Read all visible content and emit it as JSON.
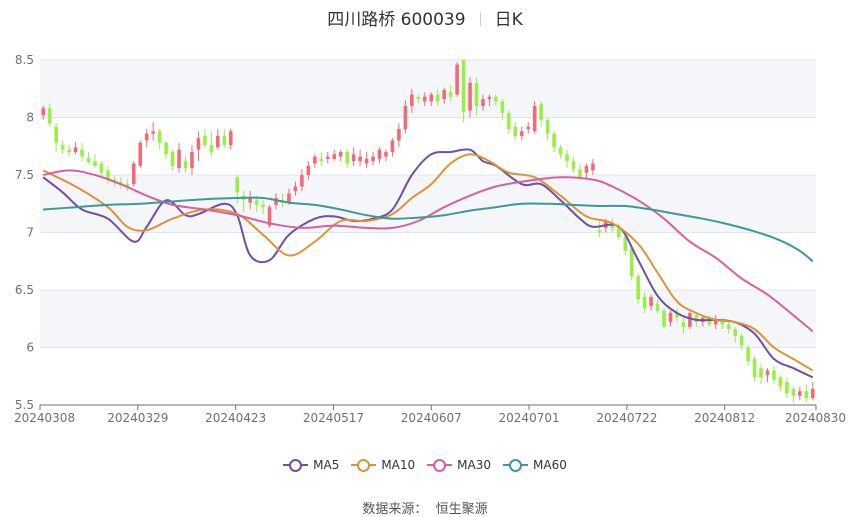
{
  "title": {
    "name": "四川路桥 600039",
    "period": "日K"
  },
  "source": {
    "label": "数据来源：",
    "value": "恒生聚源"
  },
  "colors": {
    "up": "#f06b77",
    "down": "#99ef45",
    "grid_band": "#f5f6fa",
    "ma5": "#6f4fa7",
    "ma10": "#de9339",
    "ma30": "#d9609e",
    "ma60": "#3c9a99"
  },
  "chart_data": {
    "type": "candlestick",
    "ylim": [
      5.5,
      8.5
    ],
    "yticks": [
      "8.5",
      "8",
      "7.5",
      "7",
      "6.5",
      "6",
      "5.5"
    ],
    "ytick_values": [
      8.5,
      8.0,
      7.5,
      7.0,
      6.5,
      6.0,
      5.5
    ],
    "xtick_labels": [
      "20240308",
      "20240329",
      "20240423",
      "20240517",
      "20240607",
      "20240701",
      "20240722",
      "20240812",
      "20240830"
    ],
    "xtick_index": [
      0,
      15,
      30,
      45,
      60,
      75,
      90,
      105,
      119
    ],
    "total_days": 120,
    "candles": [
      [
        8.02,
        8.08,
        8.1,
        7.98
      ],
      [
        8.08,
        7.95,
        8.12,
        7.92
      ],
      [
        7.92,
        7.78,
        7.95,
        7.7
      ],
      [
        7.76,
        7.72,
        7.8,
        7.68
      ],
      [
        7.72,
        7.7,
        7.76,
        7.66
      ],
      [
        7.7,
        7.74,
        7.79,
        7.68
      ],
      [
        7.72,
        7.66,
        7.78,
        7.62
      ],
      [
        7.65,
        7.61,
        7.7,
        7.6
      ],
      [
        7.62,
        7.58,
        7.68,
        7.56
      ],
      [
        7.6,
        7.52,
        7.62,
        7.48
      ],
      [
        7.54,
        7.46,
        7.58,
        7.42
      ],
      [
        7.46,
        7.44,
        7.5,
        7.4
      ],
      [
        7.44,
        7.42,
        7.48,
        7.38
      ],
      [
        7.42,
        7.4,
        7.46,
        7.36
      ],
      [
        7.42,
        7.6,
        7.62,
        7.4
      ],
      [
        7.58,
        7.78,
        7.8,
        7.56
      ],
      [
        7.8,
        7.86,
        7.9,
        7.74
      ],
      [
        7.86,
        7.88,
        7.96,
        7.8
      ],
      [
        7.88,
        7.78,
        7.9,
        7.72
      ],
      [
        7.78,
        7.68,
        7.8,
        7.64
      ],
      [
        7.7,
        7.58,
        7.72,
        7.54
      ],
      [
        7.56,
        7.72,
        7.78,
        7.52
      ],
      [
        7.62,
        7.56,
        7.66,
        7.52
      ],
      [
        7.56,
        7.7,
        7.76,
        7.5
      ],
      [
        7.72,
        7.82,
        7.88,
        7.62
      ],
      [
        7.84,
        7.76,
        7.9,
        7.74
      ],
      [
        7.76,
        7.7,
        7.88,
        7.66
      ],
      [
        7.74,
        7.84,
        7.9,
        7.72
      ],
      [
        7.84,
        7.76,
        7.9,
        7.74
      ],
      [
        7.76,
        7.88,
        7.9,
        7.72
      ],
      [
        7.48,
        7.35,
        7.5,
        7.25
      ],
      [
        7.32,
        7.28,
        7.36,
        7.18
      ],
      [
        7.26,
        7.3,
        7.36,
        7.2
      ],
      [
        7.28,
        7.24,
        7.32,
        7.18
      ],
      [
        7.24,
        7.22,
        7.28,
        7.16
      ],
      [
        7.06,
        7.22,
        7.24,
        7.04
      ],
      [
        7.24,
        7.3,
        7.34,
        7.2
      ],
      [
        7.28,
        7.26,
        7.34,
        7.22
      ],
      [
        7.26,
        7.34,
        7.38,
        7.24
      ],
      [
        7.36,
        7.4,
        7.44,
        7.32
      ],
      [
        7.4,
        7.5,
        7.55,
        7.36
      ],
      [
        7.5,
        7.58,
        7.62,
        7.46
      ],
      [
        7.6,
        7.66,
        7.68,
        7.56
      ],
      [
        7.64,
        7.62,
        7.7,
        7.58
      ],
      [
        7.64,
        7.66,
        7.7,
        7.6
      ],
      [
        7.64,
        7.68,
        7.72,
        7.62
      ],
      [
        7.66,
        7.7,
        7.72,
        7.62
      ],
      [
        7.7,
        7.6,
        7.72,
        7.56
      ],
      [
        7.62,
        7.68,
        7.74,
        7.58
      ],
      [
        7.62,
        7.66,
        7.72,
        7.58
      ],
      [
        7.6,
        7.64,
        7.7,
        7.56
      ],
      [
        7.62,
        7.66,
        7.7,
        7.58
      ],
      [
        7.64,
        7.72,
        7.74,
        7.6
      ],
      [
        7.66,
        7.7,
        7.72,
        7.62
      ],
      [
        7.7,
        7.8,
        7.82,
        7.66
      ],
      [
        7.8,
        7.9,
        7.95,
        7.74
      ],
      [
        7.9,
        8.1,
        8.15,
        7.86
      ],
      [
        8.1,
        8.2,
        8.25,
        8.04
      ],
      [
        8.18,
        8.16,
        8.2,
        8.12
      ],
      [
        8.14,
        8.18,
        8.22,
        8.1
      ],
      [
        8.14,
        8.2,
        8.22,
        8.1
      ],
      [
        8.2,
        8.14,
        8.24,
        8.1
      ],
      [
        8.16,
        8.24,
        8.26,
        8.12
      ],
      [
        8.22,
        8.18,
        8.28,
        8.14
      ],
      [
        8.2,
        8.46,
        8.48,
        8.18
      ],
      [
        8.5,
        8.05,
        8.5,
        7.96
      ],
      [
        8.06,
        8.3,
        8.35,
        8.0
      ],
      [
        8.3,
        8.1,
        8.35,
        8.02
      ],
      [
        8.1,
        8.16,
        8.2,
        8.06
      ],
      [
        8.16,
        8.18,
        8.2,
        8.1
      ],
      [
        8.18,
        8.14,
        8.2,
        8.1
      ],
      [
        8.14,
        8.04,
        8.16,
        7.98
      ],
      [
        8.04,
        7.9,
        8.06,
        7.86
      ],
      [
        7.92,
        7.84,
        7.96,
        7.8
      ],
      [
        7.84,
        7.88,
        7.92,
        7.8
      ],
      [
        7.9,
        7.92,
        7.96,
        7.86
      ],
      [
        7.88,
        8.1,
        8.14,
        7.86
      ],
      [
        8.12,
        7.98,
        8.14,
        7.92
      ],
      [
        7.98,
        7.86,
        8.0,
        7.8
      ],
      [
        7.86,
        7.74,
        7.88,
        7.7
      ],
      [
        7.74,
        7.68,
        7.76,
        7.64
      ],
      [
        7.68,
        7.62,
        7.72,
        7.56
      ],
      [
        7.62,
        7.55,
        7.66,
        7.52
      ],
      [
        7.55,
        7.48,
        7.6,
        7.46
      ],
      [
        7.52,
        7.58,
        7.6,
        7.46
      ],
      [
        7.54,
        7.6,
        7.64,
        7.5
      ],
      [
        7.02,
        7.0,
        7.1,
        6.96
      ],
      [
        7.04,
        7.1,
        7.12,
        7.0
      ],
      [
        7.08,
        7.04,
        7.12,
        7.0
      ],
      [
        7.04,
        6.96,
        7.08,
        6.94
      ],
      [
        6.96,
        6.84,
        6.98,
        6.8
      ],
      [
        6.86,
        6.62,
        6.88,
        6.58
      ],
      [
        6.62,
        6.42,
        6.64,
        6.38
      ],
      [
        6.44,
        6.34,
        6.48,
        6.3
      ],
      [
        6.36,
        6.44,
        6.46,
        6.32
      ],
      [
        6.38,
        6.32,
        6.42,
        6.3
      ],
      [
        6.32,
        6.18,
        6.34,
        6.16
      ],
      [
        6.22,
        6.3,
        6.32,
        6.18
      ],
      [
        6.3,
        6.26,
        6.34,
        6.22
      ],
      [
        6.22,
        6.18,
        6.26,
        6.12
      ],
      [
        6.18,
        6.3,
        6.32,
        6.16
      ],
      [
        6.28,
        6.22,
        6.3,
        6.18
      ],
      [
        6.22,
        6.26,
        6.28,
        6.18
      ],
      [
        6.26,
        6.2,
        6.28,
        6.18
      ],
      [
        6.2,
        6.24,
        6.28,
        6.16
      ],
      [
        6.24,
        6.2,
        6.26,
        6.16
      ],
      [
        6.2,
        6.16,
        6.24,
        6.12
      ],
      [
        6.16,
        6.1,
        6.18,
        6.04
      ],
      [
        6.1,
        6.02,
        6.12,
        5.98
      ],
      [
        6.0,
        5.88,
        6.02,
        5.84
      ],
      [
        5.9,
        5.74,
        5.92,
        5.7
      ],
      [
        5.82,
        5.74,
        5.86,
        5.68
      ],
      [
        5.76,
        5.8,
        5.82,
        5.7
      ],
      [
        5.8,
        5.72,
        5.84,
        5.68
      ],
      [
        5.74,
        5.66,
        5.76,
        5.62
      ],
      [
        5.7,
        5.6,
        5.74,
        5.56
      ],
      [
        5.64,
        5.58,
        5.66,
        5.52
      ],
      [
        5.58,
        5.62,
        5.66,
        5.54
      ],
      [
        5.62,
        5.56,
        5.68,
        5.52
      ],
      [
        5.56,
        5.64,
        5.7,
        5.54
      ]
    ],
    "series": [
      {
        "name": "MA5",
        "color_key": "ma5",
        "points": [
          [
            0,
            7.48
          ],
          [
            3,
            7.35
          ],
          [
            6,
            7.2
          ],
          [
            10,
            7.12
          ],
          [
            14,
            6.92
          ],
          [
            16,
            7.05
          ],
          [
            19,
            7.28
          ],
          [
            22,
            7.15
          ],
          [
            24,
            7.16
          ],
          [
            28,
            7.25
          ],
          [
            30,
            7.15
          ],
          [
            32,
            6.8
          ],
          [
            35,
            6.76
          ],
          [
            38,
            6.98
          ],
          [
            42,
            7.12
          ],
          [
            45,
            7.14
          ],
          [
            48,
            7.1
          ],
          [
            51,
            7.12
          ],
          [
            54,
            7.2
          ],
          [
            57,
            7.5
          ],
          [
            60,
            7.68
          ],
          [
            63,
            7.7
          ],
          [
            66,
            7.72
          ],
          [
            68,
            7.62
          ],
          [
            70,
            7.58
          ],
          [
            74,
            7.42
          ],
          [
            77,
            7.42
          ],
          [
            80,
            7.28
          ],
          [
            83,
            7.12
          ],
          [
            85,
            7.05
          ],
          [
            89,
            7.05
          ],
          [
            92,
            6.76
          ],
          [
            95,
            6.45
          ],
          [
            98,
            6.3
          ],
          [
            101,
            6.24
          ],
          [
            104,
            6.24
          ],
          [
            107,
            6.22
          ],
          [
            110,
            6.12
          ],
          [
            113,
            5.9
          ],
          [
            116,
            5.82
          ],
          [
            119,
            5.74
          ]
        ]
      },
      {
        "name": "MA10",
        "color_key": "ma10",
        "points": [
          [
            0,
            7.54
          ],
          [
            5,
            7.4
          ],
          [
            10,
            7.22
          ],
          [
            13,
            7.05
          ],
          [
            16,
            7.02
          ],
          [
            20,
            7.12
          ],
          [
            25,
            7.2
          ],
          [
            30,
            7.16
          ],
          [
            34,
            6.98
          ],
          [
            38,
            6.8
          ],
          [
            42,
            6.92
          ],
          [
            46,
            7.1
          ],
          [
            50,
            7.1
          ],
          [
            54,
            7.16
          ],
          [
            57,
            7.3
          ],
          [
            60,
            7.42
          ],
          [
            63,
            7.6
          ],
          [
            66,
            7.68
          ],
          [
            69,
            7.62
          ],
          [
            72,
            7.52
          ],
          [
            76,
            7.48
          ],
          [
            80,
            7.32
          ],
          [
            84,
            7.14
          ],
          [
            88,
            7.08
          ],
          [
            92,
            6.9
          ],
          [
            95,
            6.65
          ],
          [
            98,
            6.4
          ],
          [
            101,
            6.3
          ],
          [
            104,
            6.24
          ],
          [
            107,
            6.22
          ],
          [
            110,
            6.16
          ],
          [
            113,
            6.0
          ],
          [
            116,
            5.9
          ],
          [
            119,
            5.8
          ]
        ]
      },
      {
        "name": "MA30",
        "color_key": "ma30",
        "points": [
          [
            0,
            7.5
          ],
          [
            4,
            7.54
          ],
          [
            8,
            7.5
          ],
          [
            12,
            7.42
          ],
          [
            16,
            7.32
          ],
          [
            20,
            7.24
          ],
          [
            25,
            7.2
          ],
          [
            30,
            7.15
          ],
          [
            35,
            7.08
          ],
          [
            40,
            7.04
          ],
          [
            45,
            7.06
          ],
          [
            50,
            7.04
          ],
          [
            54,
            7.04
          ],
          [
            58,
            7.1
          ],
          [
            62,
            7.22
          ],
          [
            66,
            7.32
          ],
          [
            70,
            7.4
          ],
          [
            75,
            7.45
          ],
          [
            80,
            7.48
          ],
          [
            85,
            7.46
          ],
          [
            88,
            7.4
          ],
          [
            92,
            7.28
          ],
          [
            96,
            7.12
          ],
          [
            100,
            6.92
          ],
          [
            104,
            6.78
          ],
          [
            108,
            6.6
          ],
          [
            112,
            6.46
          ],
          [
            116,
            6.28
          ],
          [
            119,
            6.14
          ]
        ]
      },
      {
        "name": "MA60",
        "color_key": "ma60",
        "points": [
          [
            0,
            7.2
          ],
          [
            5,
            7.22
          ],
          [
            10,
            7.24
          ],
          [
            15,
            7.25
          ],
          [
            20,
            7.27
          ],
          [
            25,
            7.29
          ],
          [
            30,
            7.3
          ],
          [
            34,
            7.3
          ],
          [
            38,
            7.26
          ],
          [
            42,
            7.24
          ],
          [
            46,
            7.2
          ],
          [
            50,
            7.15
          ],
          [
            54,
            7.12
          ],
          [
            58,
            7.13
          ],
          [
            62,
            7.15
          ],
          [
            66,
            7.19
          ],
          [
            70,
            7.22
          ],
          [
            74,
            7.25
          ],
          [
            78,
            7.25
          ],
          [
            82,
            7.24
          ],
          [
            86,
            7.23
          ],
          [
            90,
            7.23
          ],
          [
            94,
            7.2
          ],
          [
            98,
            7.16
          ],
          [
            102,
            7.12
          ],
          [
            106,
            7.07
          ],
          [
            110,
            7.01
          ],
          [
            114,
            6.93
          ],
          [
            117,
            6.84
          ],
          [
            119,
            6.75
          ]
        ]
      }
    ]
  }
}
